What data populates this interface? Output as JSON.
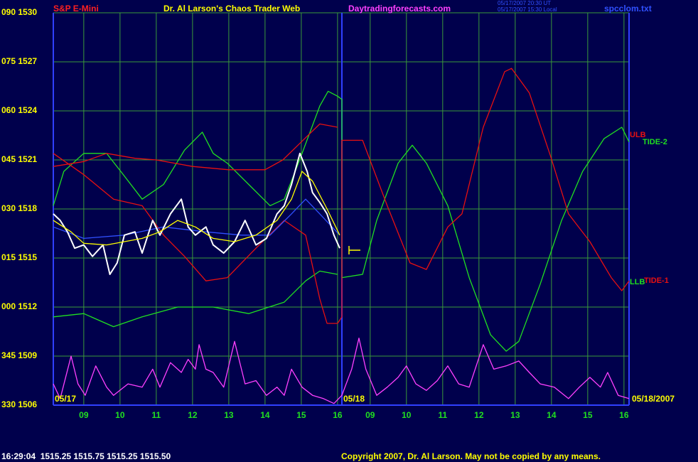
{
  "chart_data": {
    "type": "line",
    "symbol": "S&P E-Mini",
    "title": "Dr. Al Larson's Chaos Trader Web",
    "site": "Daytradingforecasts.com",
    "timestamp_ut": "05/17/2007 20:30 UT",
    "timestamp_local": "05/17/2007 15:30 Local",
    "file": "spcclom.txt",
    "date_left": "05/17",
    "date_mid": "05/18",
    "date_right": "05/18/2007",
    "quote": "16:29:04  1515.25 1515.75 1515.25 1515.50",
    "copyright": "Copyright 2007, Dr. Al Larson. May not be copied by any means.",
    "grid": true,
    "xlim": [
      8.16,
      24.04
    ],
    "ylim": [
      1506,
      1530
    ],
    "xticks": [
      {
        "value": 9,
        "label": "09"
      },
      10,
      11,
      12,
      13,
      14,
      15,
      16,
      {
        "value": 16.9,
        "label": "09"
      },
      {
        "value": 17.9,
        "label": "10"
      },
      {
        "value": 18.9,
        "label": "11"
      },
      {
        "value": 19.9,
        "label": "12"
      },
      {
        "value": 20.9,
        "label": "13"
      },
      {
        "value": 21.9,
        "label": "14"
      },
      {
        "value": 22.9,
        "label": "15"
      },
      {
        "value": 23.9,
        "label": "16"
      }
    ],
    "yticks": [
      {
        "value": 1530,
        "label": "090 1530"
      },
      {
        "value": 1527,
        "label": "075 1527"
      },
      {
        "value": 1524,
        "label": "060 1524"
      },
      {
        "value": 1521,
        "label": "045 1521"
      },
      {
        "value": 1518,
        "label": "030 1518"
      },
      {
        "value": 1515,
        "label": "015 1515"
      },
      {
        "value": 1512,
        "label": "000 1512"
      },
      {
        "value": 1509,
        "label": "345 1509"
      },
      {
        "value": 1506,
        "label": "330 1506"
      }
    ],
    "series": [
      {
        "name": "LLB",
        "color": "#20e020",
        "x": [
          8.16,
          9.0,
          9.82,
          10.61,
          11.59,
          12.57,
          13.55,
          14.53,
          15.12,
          15.51,
          16.0
        ],
        "values": [
          1511.4,
          1511.6,
          1510.8,
          1511.4,
          1512.0,
          1512.0,
          1511.6,
          1512.3,
          1513.6,
          1514.2,
          1514.0
        ]
      },
      {
        "name": "TIDE-2",
        "color": "#20e020",
        "x": [
          8.16,
          8.45,
          9.0,
          9.63,
          10.02,
          10.61,
          11.2,
          11.78,
          12.27,
          12.57,
          12.96,
          13.55,
          14.14,
          14.53,
          14.92,
          15.51,
          15.74,
          16.0,
          16.12,
          16.12,
          16.69,
          17.08,
          17.67,
          18.06,
          18.45,
          19.04,
          19.63,
          20.22,
          20.65,
          21.0,
          21.59,
          22.18,
          22.76,
          23.35,
          23.84,
          24.04
        ],
        "values": [
          1518.2,
          1520.3,
          1521.4,
          1521.4,
          1520.3,
          1518.6,
          1519.5,
          1521.6,
          1522.7,
          1521.4,
          1520.8,
          1519.5,
          1518.2,
          1518.6,
          1520.8,
          1524.3,
          1525.2,
          1524.9,
          1524.7,
          1513.8,
          1514.0,
          1517.3,
          1520.8,
          1521.9,
          1520.8,
          1518.2,
          1513.8,
          1510.3,
          1509.3,
          1509.9,
          1513.4,
          1517.3,
          1520.3,
          1522.3,
          1523.0,
          1522.1
        ]
      },
      {
        "name": "ULB",
        "color": "#e81010",
        "x": [
          8.16,
          9.0,
          9.63,
          10.41,
          11.0,
          12.0,
          13.0,
          14.0,
          14.49,
          15.0,
          15.51,
          16.0
        ],
        "values": [
          1520.6,
          1520.9,
          1521.4,
          1521.1,
          1521.0,
          1520.6,
          1520.4,
          1520.4,
          1521.0,
          1522.1,
          1523.2,
          1523.0
        ]
      },
      {
        "name": "TIDE-1",
        "color": "#e81010",
        "x": [
          8.16,
          9.0,
          9.82,
          10.61,
          11.2,
          11.78,
          12.37,
          12.96,
          13.75,
          14.53,
          15.12,
          15.51,
          15.71,
          16.0,
          16.12,
          16.12,
          16.69,
          17.37,
          18.0,
          18.45,
          19.04,
          19.43,
          20.02,
          20.61,
          20.8,
          21.29,
          21.88,
          22.37,
          22.96,
          23.55,
          23.84,
          24.04
        ],
        "values": [
          1521.4,
          1520.1,
          1518.6,
          1518.2,
          1516.4,
          1515.1,
          1513.6,
          1513.8,
          1515.6,
          1517.3,
          1516.4,
          1512.5,
          1511.0,
          1511.0,
          1511.4,
          1522.2,
          1522.2,
          1518.2,
          1514.7,
          1514.3,
          1516.9,
          1517.7,
          1523.0,
          1526.4,
          1526.6,
          1525.1,
          1521.2,
          1517.7,
          1516.0,
          1513.8,
          1513.0,
          1513.6
        ]
      },
      {
        "color": "#ff40ff",
        "x": [
          8.16,
          8.35,
          8.65,
          8.84,
          9.04,
          9.33,
          9.63,
          9.82,
          10.22,
          10.61,
          10.9,
          11.1,
          11.39,
          11.69,
          11.88,
          12.08,
          12.18,
          12.37,
          12.57,
          12.86,
          13.16,
          13.45,
          13.75,
          14.04,
          14.33,
          14.53,
          14.73,
          15.02,
          15.31,
          15.61,
          15.9,
          16.12,
          16.39,
          16.59,
          16.78,
          17.08,
          17.37,
          17.67,
          17.9,
          18.16,
          18.45,
          18.75,
          19.04,
          19.34,
          19.63,
          20.02,
          20.31,
          20.65,
          21.0,
          21.29,
          21.59,
          21.98,
          22.37,
          22.67,
          22.96,
          23.25,
          23.45,
          23.74,
          24.04
        ],
        "values": [
          1507.3,
          1506.4,
          1509.0,
          1507.3,
          1506.6,
          1508.4,
          1507.1,
          1506.6,
          1507.3,
          1507.1,
          1508.2,
          1507.1,
          1508.6,
          1508.0,
          1508.8,
          1508.2,
          1509.7,
          1508.2,
          1508.0,
          1507.1,
          1509.9,
          1507.3,
          1507.5,
          1506.6,
          1507.1,
          1506.6,
          1508.2,
          1507.1,
          1506.6,
          1506.4,
          1506.1,
          1506.6,
          1508.2,
          1510.1,
          1508.2,
          1506.6,
          1507.1,
          1507.7,
          1508.4,
          1507.3,
          1506.9,
          1507.5,
          1508.4,
          1507.3,
          1507.1,
          1509.7,
          1508.2,
          1508.4,
          1508.7,
          1508.0,
          1507.3,
          1507.1,
          1506.4,
          1507.1,
          1507.7,
          1507.1,
          1508.0,
          1506.6,
          1506.4
        ]
      },
      {
        "color": "#3050ff",
        "x": [
          8.16,
          9.0,
          10.12,
          11.2,
          12.37,
          13.35,
          14.14,
          14.73,
          15.12,
          15.51,
          16.06
        ],
        "values": [
          1516.9,
          1516.2,
          1516.4,
          1516.9,
          1516.6,
          1516.4,
          1516.4,
          1517.7,
          1518.6,
          1517.7,
          1516.4
        ]
      },
      {
        "color": "#ffffff",
        "x": [
          8.16,
          8.35,
          8.55,
          8.75,
          9.0,
          9.24,
          9.53,
          9.72,
          9.92,
          10.12,
          10.41,
          10.61,
          10.9,
          11.1,
          11.39,
          11.69,
          11.88,
          12.08,
          12.37,
          12.57,
          12.86,
          13.16,
          13.45,
          13.75,
          14.04,
          14.33,
          14.53,
          14.73,
          14.96,
          15.16,
          15.31,
          15.51,
          15.71,
          15.9,
          16.06
        ],
        "values": [
          1517.7,
          1517.3,
          1516.6,
          1515.6,
          1515.8,
          1515.1,
          1515.8,
          1514.0,
          1514.7,
          1516.4,
          1516.6,
          1515.3,
          1517.3,
          1516.4,
          1517.7,
          1518.6,
          1516.9,
          1516.4,
          1516.9,
          1515.8,
          1515.3,
          1516.0,
          1517.3,
          1515.8,
          1516.2,
          1517.7,
          1518.2,
          1519.5,
          1521.4,
          1520.3,
          1519.0,
          1518.4,
          1517.7,
          1516.4,
          1515.6
        ]
      },
      {
        "color": "#ffff00",
        "x": [
          8.16,
          8.65,
          9.0,
          9.63,
          10.12,
          10.61,
          11.1,
          11.59,
          12.08,
          12.57,
          13.16,
          13.75,
          14.33,
          14.73,
          15.02,
          15.31,
          15.71,
          16.06
        ],
        "values": [
          1517.3,
          1516.6,
          1515.9,
          1515.8,
          1516.0,
          1516.2,
          1516.6,
          1517.3,
          1516.9,
          1516.2,
          1516.0,
          1516.4,
          1517.3,
          1518.6,
          1520.3,
          1519.7,
          1518.0,
          1516.4
        ]
      }
    ]
  }
}
